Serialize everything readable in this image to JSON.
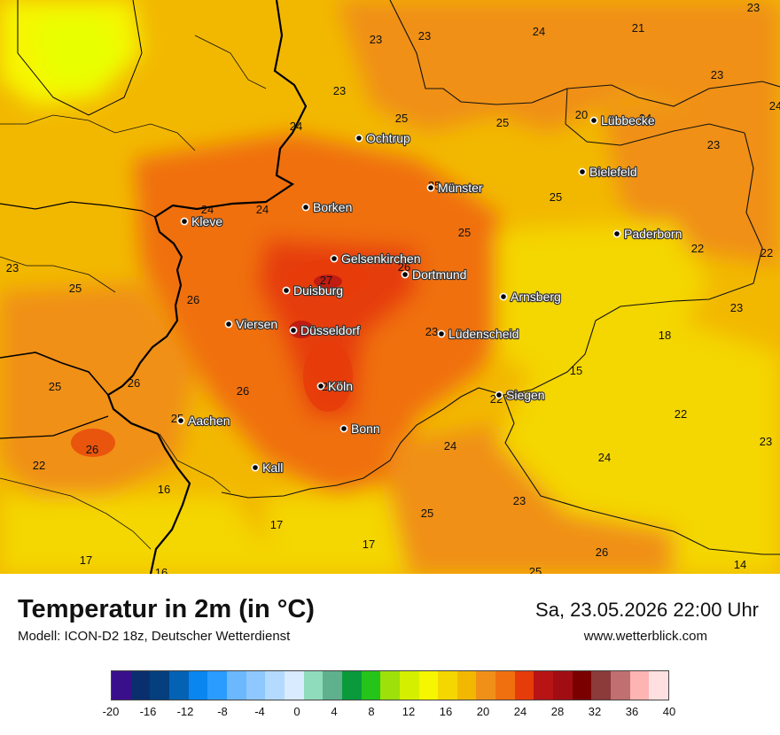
{
  "footer": {
    "title": "Temperatur in 2m (in °C)",
    "subtitle": "Modell: ICON-D2 18z, Deutscher Wetterdienst",
    "datetime": "Sa, 23.05.2026 22:00 Uhr",
    "website": "www.wetterblick.com"
  },
  "legend": {
    "colors": [
      "#3a0f8c",
      "#0a2f6e",
      "#053f7e",
      "#0462b4",
      "#0a86f0",
      "#2b9cff",
      "#6cb8ff",
      "#8ec8ff",
      "#b4dbff",
      "#d8ebff",
      "#8fdcbc",
      "#5fb08c",
      "#0a9a3c",
      "#24c41a",
      "#9ee00a",
      "#d4f000",
      "#f6f600",
      "#f4d600",
      "#f2b800",
      "#f09018",
      "#f07010",
      "#e63c0a",
      "#b81414",
      "#a00e14",
      "#7a0000",
      "#8c3a3a",
      "#c07070",
      "#ffb4b4",
      "#ffe0e0"
    ],
    "labels": [
      "-20",
      "-16",
      "-12",
      "-8",
      "-4",
      "0",
      "4",
      "8",
      "12",
      "16",
      "20",
      "24",
      "28",
      "32",
      "36",
      "40"
    ]
  },
  "cities": [
    {
      "name": "Ochtrup"
    },
    {
      "name": "Lübbecke"
    },
    {
      "name": "Bielefeld"
    },
    {
      "name": "Münster"
    },
    {
      "name": "Borken"
    },
    {
      "name": "Kleve"
    },
    {
      "name": "Paderborn"
    },
    {
      "name": "Gelsenkirchen"
    },
    {
      "name": "Dortmund"
    },
    {
      "name": "Duisburg"
    },
    {
      "name": "Arnsberg"
    },
    {
      "name": "Viersen"
    },
    {
      "name": "Düsseldorf"
    },
    {
      "name": "Lüdenscheid"
    },
    {
      "name": "Köln"
    },
    {
      "name": "Siegen"
    },
    {
      "name": "Aachen"
    },
    {
      "name": "Bonn"
    },
    {
      "name": "Kall"
    }
  ],
  "temperature_labels": [
    "23",
    "23",
    "24",
    "21",
    "23",
    "23",
    "25",
    "25",
    "24",
    "20",
    "24",
    "23",
    "23",
    "24",
    "25",
    "25",
    "24",
    "24",
    "25",
    "22",
    "22",
    "23",
    "25",
    "26",
    "27",
    "26",
    "23",
    "26",
    "23",
    "18",
    "25",
    "26",
    "25",
    "15",
    "22",
    "25",
    "22",
    "24",
    "26",
    "23",
    "22",
    "24",
    "16",
    "23",
    "25",
    "17",
    "17",
    "17",
    "16",
    "25",
    "26",
    "14"
  ]
}
